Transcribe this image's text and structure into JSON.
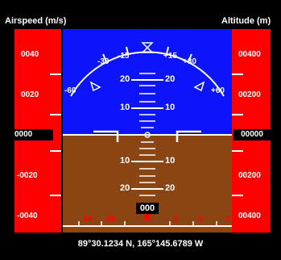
{
  "airspeed": {
    "title": "Airspeed (m/s)",
    "ticks": [
      "0040",
      "0020",
      "-0020",
      "-0040"
    ],
    "current": "0000"
  },
  "altitude": {
    "title": "Altitude (m)",
    "ticks": [
      "00400",
      "00200",
      "00200",
      "00400"
    ],
    "current": "00000"
  },
  "roll_scale": [
    "-60",
    "-30",
    "-15",
    "+15",
    "+30",
    "+60"
  ],
  "pitch_ladder": {
    "up": [
      "20",
      "20",
      "10",
      "10"
    ],
    "down": [
      "10",
      "10",
      "20",
      "20"
    ]
  },
  "heading": {
    "current": "000",
    "ticks": [
      "34",
      "35",
      "N",
      "1",
      "2",
      "3"
    ]
  },
  "position": "89°30.1234 N, 165°145.6789 W",
  "colors": {
    "sky": "#0b14fa",
    "ground": "#8b4513",
    "tape": "#ff0000",
    "marker": "#ffffff"
  }
}
